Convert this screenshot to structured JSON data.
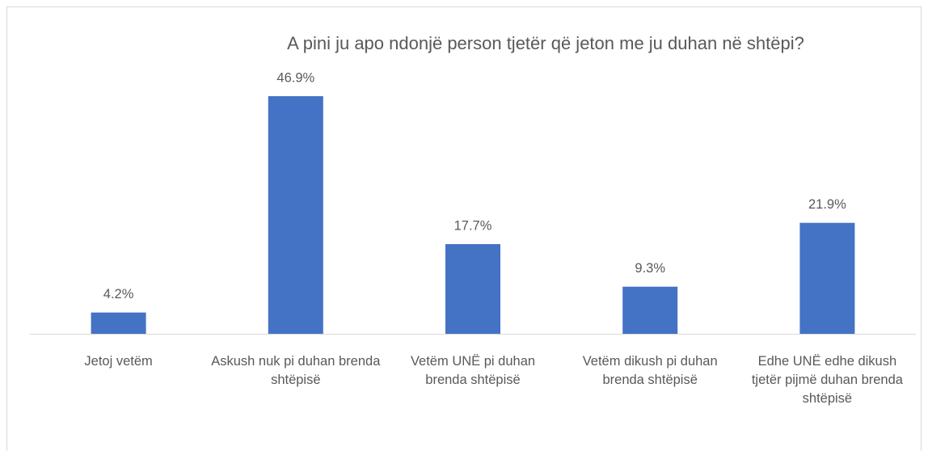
{
  "chart_data": {
    "type": "bar",
    "title": "A pini ju apo ndonjë person tjetër që jeton me ju duhan në shtëpi?",
    "categories": [
      "Jetoj vetëm",
      "Askush nuk pi duhan brenda shtëpisë",
      "Vetëm UNË pi duhan brenda shtëpisë",
      "Vetëm dikush pi duhan brenda shtëpisë",
      "Edhe UNË edhe dikush tjetër pijmë duhan brenda shtëpisë"
    ],
    "values": [
      4.2,
      46.9,
      17.7,
      9.3,
      21.9
    ],
    "value_labels": [
      "4.2%",
      "46.9%",
      "17.7%",
      "9.3%",
      "21.9%"
    ],
    "color": "#4472c4"
  }
}
